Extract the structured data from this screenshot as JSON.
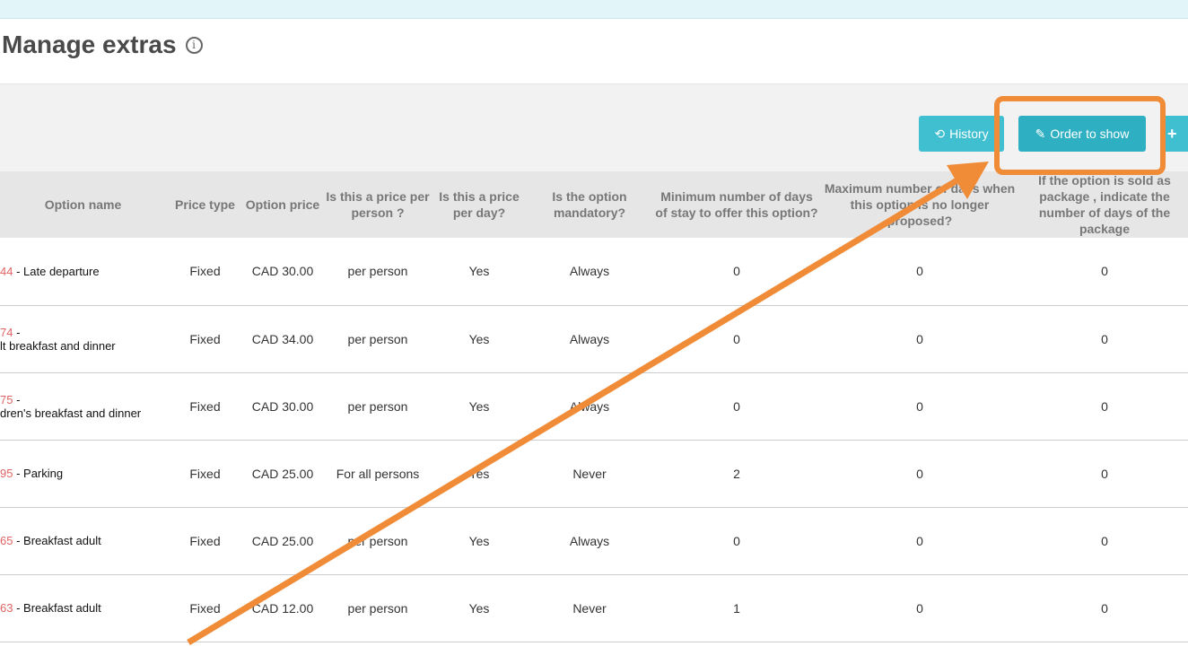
{
  "header": {
    "title": "Manage extras",
    "info_icon": "info-circle-icon"
  },
  "toolbar": {
    "history_label": "History",
    "history_icon": "history-icon",
    "order_label": "Order to show",
    "order_icon": "pencil-icon",
    "add_icon": "plus-icon"
  },
  "colors": {
    "button": "#3fbfd0",
    "annotation": "#f08c38",
    "id_text": "#e06464"
  },
  "table": {
    "headers": [
      "Option name",
      "Price type",
      "Option price",
      "Is this a price per person ?",
      "Is this a price per day?",
      "Is the option mandatory?",
      "Minimum number of days of stay to offer this option?",
      "Maximum number of days when this option is no longer proposed?",
      "If the option is sold as package , indicate the number of days of the package"
    ],
    "rows": [
      {
        "id": "44",
        "sep": " - ",
        "name": "Late departure",
        "type": "Fixed",
        "price": "CAD 30.00",
        "per_person": "per person",
        "per_day": "Yes",
        "mandatory": "Always",
        "min": "0",
        "max": "0",
        "package": "0"
      },
      {
        "id": "74",
        "sep": " -",
        "name": "lt breakfast and dinner",
        "type": "Fixed",
        "price": "CAD 34.00",
        "per_person": "per person",
        "per_day": "Yes",
        "mandatory": "Always",
        "min": "0",
        "max": "0",
        "package": "0"
      },
      {
        "id": "75",
        "sep": " -",
        "name": "dren's breakfast and dinner",
        "type": "Fixed",
        "price": "CAD 30.00",
        "per_person": "per person",
        "per_day": "Yes",
        "mandatory": "Always",
        "min": "0",
        "max": "0",
        "package": "0"
      },
      {
        "id": "95",
        "sep": " - ",
        "name": "Parking",
        "type": "Fixed",
        "price": "CAD 25.00",
        "per_person": "For all persons",
        "per_day": "Yes",
        "mandatory": "Never",
        "min": "2",
        "max": "0",
        "package": "0"
      },
      {
        "id": "65",
        "sep": " - ",
        "name": "Breakfast adult",
        "type": "Fixed",
        "price": "CAD 25.00",
        "per_person": "per person",
        "per_day": "Yes",
        "mandatory": "Always",
        "min": "0",
        "max": "0",
        "package": "0"
      },
      {
        "id": "63",
        "sep": " - ",
        "name": "Breakfast adult",
        "type": "Fixed",
        "price": "CAD 12.00",
        "per_person": "per person",
        "per_day": "Yes",
        "mandatory": "Never",
        "min": "1",
        "max": "0",
        "package": "0"
      }
    ]
  }
}
